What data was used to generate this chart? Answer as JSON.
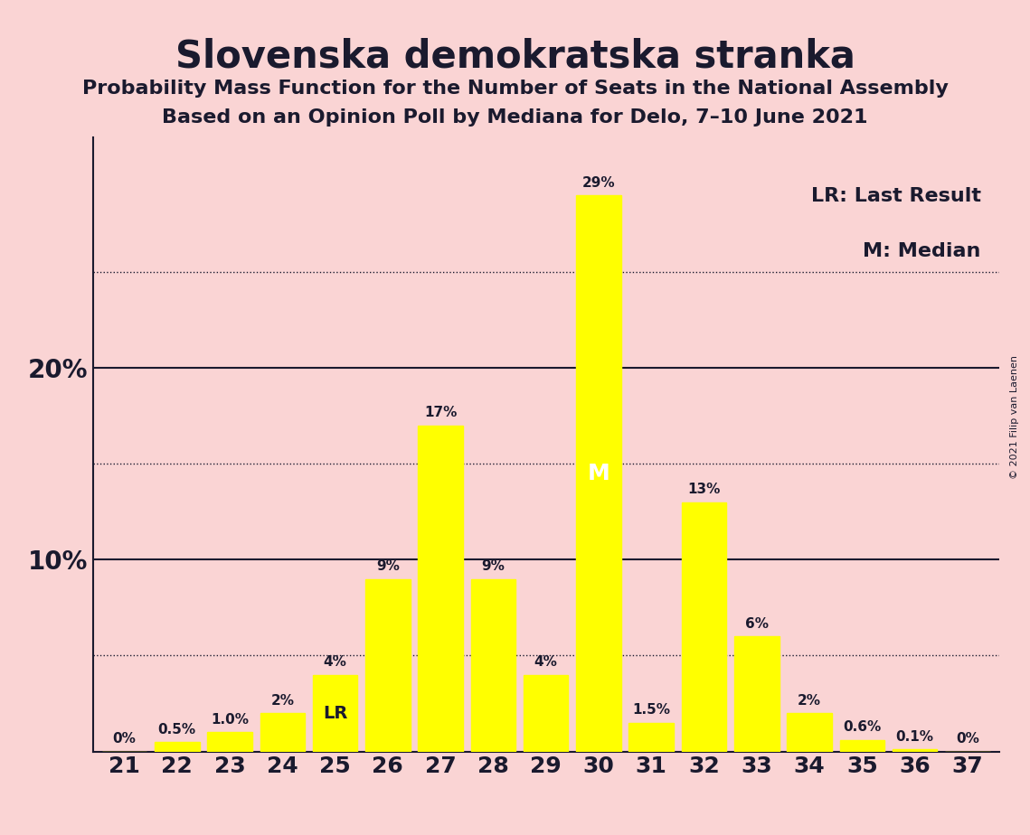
{
  "title": "Slovenska demokratska stranka",
  "subtitle1": "Probability Mass Function for the Number of Seats in the National Assembly",
  "subtitle2": "Based on an Opinion Poll by Mediana for Delo, 7–10 June 2021",
  "copyright": "© 2021 Filip van Laenen",
  "seats": [
    21,
    22,
    23,
    24,
    25,
    26,
    27,
    28,
    29,
    30,
    31,
    32,
    33,
    34,
    35,
    36,
    37
  ],
  "probabilities": [
    0.0,
    0.5,
    1.0,
    2.0,
    4.0,
    9.0,
    17.0,
    9.0,
    4.0,
    29.0,
    1.5,
    13.0,
    6.0,
    2.0,
    0.6,
    0.1,
    0.0
  ],
  "labels": [
    "0%",
    "0.5%",
    "1.0%",
    "2%",
    "4%",
    "9%",
    "17%",
    "9%",
    "4%",
    "29%",
    "1.5%",
    "13%",
    "6%",
    "2%",
    "0.6%",
    "0.1%",
    "0%"
  ],
  "bar_color": "#FFFF00",
  "background_color": "#FAD4D4",
  "text_color": "#1a1a2e",
  "last_result_seat": 25,
  "median_seat": 30,
  "legend_lr": "LR: Last Result",
  "legend_m": "M: Median",
  "yticks": [
    0,
    5,
    10,
    15,
    20,
    25,
    30
  ],
  "ytick_labels": [
    "",
    "",
    "10%",
    "",
    "20%",
    "",
    ""
  ],
  "solid_yticks": [
    10,
    20
  ],
  "dotted_yticks": [
    5,
    15,
    25
  ],
  "ylim": [
    0,
    32
  ]
}
